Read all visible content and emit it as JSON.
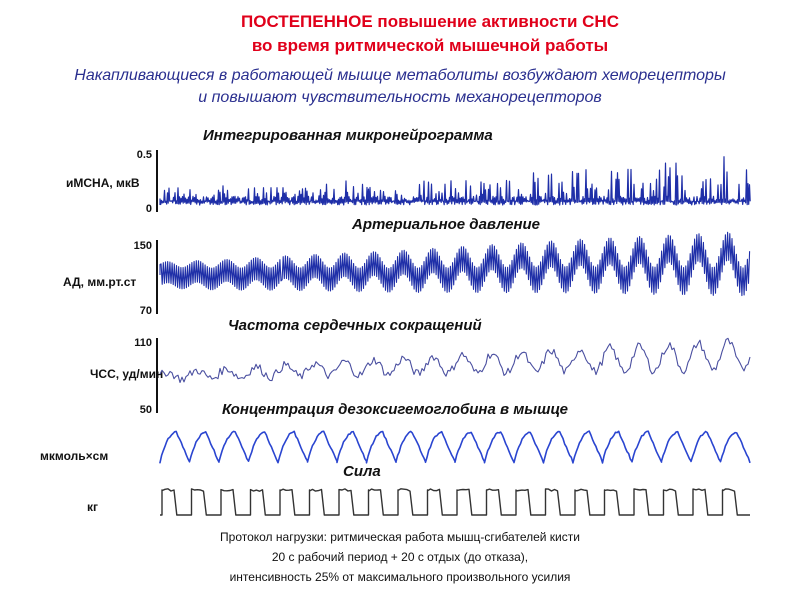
{
  "header": {
    "title_line1": "ПОСТЕПЕННОЕ повышение активности СНС",
    "title_line2": "во время ритмической мышечной работы",
    "subtitle_line1": "Накапливающиеся в работающей мышце метаболиты возбуждают хеморецепторы",
    "subtitle_line2": "и повышают чувствительность механорецепторов"
  },
  "colors": {
    "title": "#e0001a",
    "subtitle": "#2a2f8f",
    "msna_trace": "#1f2fa8",
    "bp_trace": "#1f2fa8",
    "hr_trace": "#4a4fa0",
    "hbo_trace": "#2a45d0",
    "force_trace": "#333333"
  },
  "chart_data": [
    {
      "type": "line",
      "title": "Интегрированная микронейрограмма",
      "ylabel": "иМСНА, мкВ",
      "ytick_labels": [
        "0.5",
        "0"
      ],
      "ylim": [
        0,
        0.5
      ],
      "description_of_signal": "bursts of integrated muscle sympathetic nerve activity with amplitude gradually increasing over the work protocol",
      "x": [
        0,
        10,
        20,
        30,
        40,
        50,
        60,
        70,
        80,
        90,
        100
      ],
      "values": [
        0.12,
        0.14,
        0.15,
        0.17,
        0.18,
        0.21,
        0.23,
        0.26,
        0.29,
        0.32,
        0.36
      ]
    },
    {
      "type": "line",
      "title": "Артериальное давление",
      "ylabel": "АД, мм.рт.ст",
      "ytick_labels": [
        "150",
        "70"
      ],
      "ylim": [
        70,
        150
      ],
      "description_of_signal": "beat-to-beat pressure with slow oscillations whose amplitude grows over the protocol",
      "x": [
        0,
        10,
        20,
        30,
        40,
        50,
        60,
        70,
        80,
        90,
        100
      ],
      "values": [
        110,
        110,
        112,
        113,
        114,
        116,
        118,
        120,
        121,
        122,
        123
      ]
    },
    {
      "type": "line",
      "title": "Частота сердечных сокращений",
      "ylabel": "ЧСС, уд/мин",
      "ytick_labels": [
        "110",
        "50"
      ],
      "ylim": [
        50,
        110
      ],
      "x": [
        0,
        10,
        20,
        30,
        40,
        50,
        60,
        70,
        80,
        90,
        100
      ],
      "values": [
        80,
        82,
        84,
        86,
        88,
        90,
        91,
        93,
        94,
        96,
        98
      ]
    },
    {
      "type": "line",
      "title": "Концентрация дезоксигемоглобина в мышце",
      "ylabel": "мкмоль×см",
      "description_of_signal": "periodic sawtooth rising during work and falling during rest",
      "cycles": 20
    },
    {
      "type": "line",
      "title": "Сила",
      "ylabel": "кг",
      "description_of_signal": "rectangular force pulses: 20 s work / 20 s rest",
      "cycles": 20
    }
  ],
  "protocol": {
    "line1": "Протокол нагрузки: ритмическая работа мышц-сгибателей кисти",
    "line2": "20 с рабочий период + 20 с отдых (до отказа),",
    "line3": "интенсивность 25% от максимального произвольного усилия"
  }
}
